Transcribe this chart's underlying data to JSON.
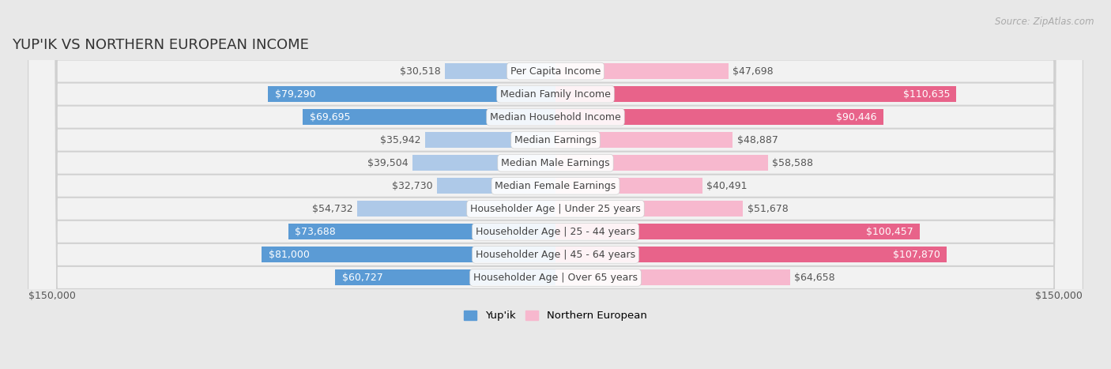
{
  "title": "YUP'IK VS NORTHERN EUROPEAN INCOME",
  "source": "Source: ZipAtlas.com",
  "categories": [
    "Per Capita Income",
    "Median Family Income",
    "Median Household Income",
    "Median Earnings",
    "Median Male Earnings",
    "Median Female Earnings",
    "Householder Age | Under 25 years",
    "Householder Age | 25 - 44 years",
    "Householder Age | 45 - 64 years",
    "Householder Age | Over 65 years"
  ],
  "yupik_values": [
    30518,
    79290,
    69695,
    35942,
    39504,
    32730,
    54732,
    73688,
    81000,
    60727
  ],
  "northern_values": [
    47698,
    110635,
    90446,
    48887,
    58588,
    40491,
    51678,
    100457,
    107870,
    64658
  ],
  "yupik_color_light": "#aec9e8",
  "yupik_color_dark": "#5b9bd5",
  "northern_color_light": "#f7b8ce",
  "northern_color_dark": "#e8638a",
  "yupik_threshold": 60000,
  "northern_threshold": 65000,
  "max_value": 150000,
  "bg_color": "#e8e8e8",
  "row_bg_color": "#f2f2f2",
  "row_border_color": "#d0d0d0",
  "label_color_dark": "#555555",
  "label_color_white": "#ffffff",
  "cat_label_color": "#444444",
  "label_fontsize": 9,
  "title_fontsize": 13,
  "source_fontsize": 8.5,
  "axis_label": "$150,000",
  "legend_yupik": "Yup'ik",
  "legend_northern": "Northern European"
}
